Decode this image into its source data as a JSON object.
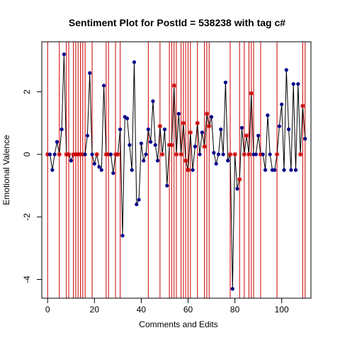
{
  "chart_data": {
    "type": "line",
    "title": "Sentiment Plot for PostId =  538238  with tag  c#",
    "xlabel": "Comments and Edits",
    "ylabel": "Emotional Valence",
    "xlim": [
      -2.5,
      112.5
    ],
    "ylim": [
      -4.6,
      3.6
    ],
    "x_ticks": [
      0,
      20,
      40,
      60,
      80,
      100
    ],
    "y_ticks": [
      -4,
      -2,
      0,
      2
    ],
    "colors": {
      "line": "#000000",
      "comment_point": "#00008b",
      "edit_marker": "#cc0000",
      "edit_line": "#cc0000"
    },
    "series": [
      {
        "name": "",
        "x": [
          0,
          1,
          2,
          3,
          4,
          5,
          6,
          7,
          8,
          9,
          10,
          11,
          12,
          13,
          14,
          15,
          16,
          17,
          18,
          19,
          20,
          21,
          22,
          23,
          24,
          25,
          26,
          27,
          28,
          29,
          30,
          31,
          32,
          33,
          34,
          35,
          36,
          37,
          38,
          39,
          40,
          41,
          42,
          43,
          44,
          45,
          46,
          47,
          48,
          49,
          50,
          51,
          52,
          53,
          54,
          55,
          56,
          57,
          58,
          59,
          60,
          61,
          62,
          63,
          64,
          65,
          66,
          67,
          68,
          69,
          70,
          71,
          72,
          73,
          74,
          75,
          76,
          77,
          78,
          79,
          80,
          81,
          82,
          83,
          84,
          85,
          86,
          87,
          88,
          89,
          90,
          91,
          92,
          93,
          94,
          95,
          96,
          97,
          98,
          99,
          100,
          101,
          102,
          103,
          104,
          105,
          106,
          107,
          108,
          109,
          110,
          111
        ],
        "y": [
          0,
          0,
          -0.5,
          0,
          0.4,
          0,
          0.8,
          3.2,
          0,
          0,
          -0.2,
          0,
          0,
          0,
          0,
          0,
          0,
          0.6,
          2.6,
          0,
          -0.3,
          0,
          -0.4,
          -0.5,
          2.2,
          0,
          0,
          0,
          -0.6,
          0,
          0,
          0.8,
          -2.6,
          1.2,
          1.15,
          0.3,
          -0.5,
          2.95,
          -1.6,
          -1.45,
          0.35,
          -0.2,
          0,
          0.8,
          0.4,
          1.7,
          0.3,
          -0.2,
          0.9,
          0,
          0.8,
          -1.0,
          0.3,
          0.3,
          2.2,
          0,
          1.3,
          0,
          1.0,
          -0.2,
          -0.5,
          0.7,
          -0.5,
          0.25,
          1.0,
          0,
          0.7,
          0.25,
          1.3,
          0.9,
          1.2,
          0.05,
          -0.3,
          0,
          0.8,
          0,
          2.3,
          -0.2,
          0,
          -4.3,
          0,
          -1.1,
          -0.8,
          0.85,
          0,
          0.6,
          0,
          1.95,
          0,
          0,
          0.6,
          0,
          0,
          -0.5,
          1.25,
          0,
          -0.5,
          -0.5,
          0,
          0.9,
          1.6,
          -0.5,
          2.7,
          0.8,
          -0.5,
          2.25,
          -0.5,
          2.25,
          0,
          1.55,
          0.5,
          null
        ],
        "point_kind": [
          "e",
          "c",
          "c",
          "c",
          "c",
          "e",
          "c",
          "c",
          "e",
          "e",
          "c",
          "e",
          "e",
          "e",
          "e",
          "e",
          "c",
          "c",
          "c",
          "c",
          "c",
          "e",
          "c",
          "c",
          "c",
          "e",
          "e",
          "c",
          "c",
          "e",
          "e",
          "c",
          "c",
          "c",
          "c",
          "c",
          "c",
          "c",
          "c",
          "c",
          "c",
          "c",
          "c",
          "c",
          "c",
          "c",
          "c",
          "c",
          "e",
          "e",
          "c",
          "c",
          "e",
          "e",
          "e",
          "e",
          "c",
          "e",
          "e",
          "e",
          "e",
          "e",
          "c",
          "c",
          "e",
          "c",
          "c",
          "e",
          "e",
          "e",
          "c",
          "c",
          "c",
          "c",
          "c",
          "c",
          "c",
          "c",
          "e",
          "c",
          "e",
          "c",
          "e",
          "c",
          "e",
          "e",
          "e",
          "e",
          "c",
          "c",
          "c",
          "e",
          "c",
          "c",
          "c",
          "c",
          "c",
          "c",
          "e",
          "c",
          "c",
          "c",
          "c",
          "c",
          "c",
          "c",
          "c",
          "c",
          "e",
          "e",
          "c",
          "c"
        ]
      }
    ],
    "edit_lines_x": [
      0,
      5,
      8,
      9,
      11,
      12,
      13,
      14,
      15,
      16,
      19,
      25,
      26,
      29,
      31,
      43,
      48,
      52,
      53,
      54,
      55,
      57,
      58,
      59,
      60,
      61,
      64,
      67,
      68,
      69,
      78,
      82,
      84,
      86,
      87,
      88,
      91,
      98,
      109,
      110
    ],
    "legend": "none",
    "grid": false
  }
}
